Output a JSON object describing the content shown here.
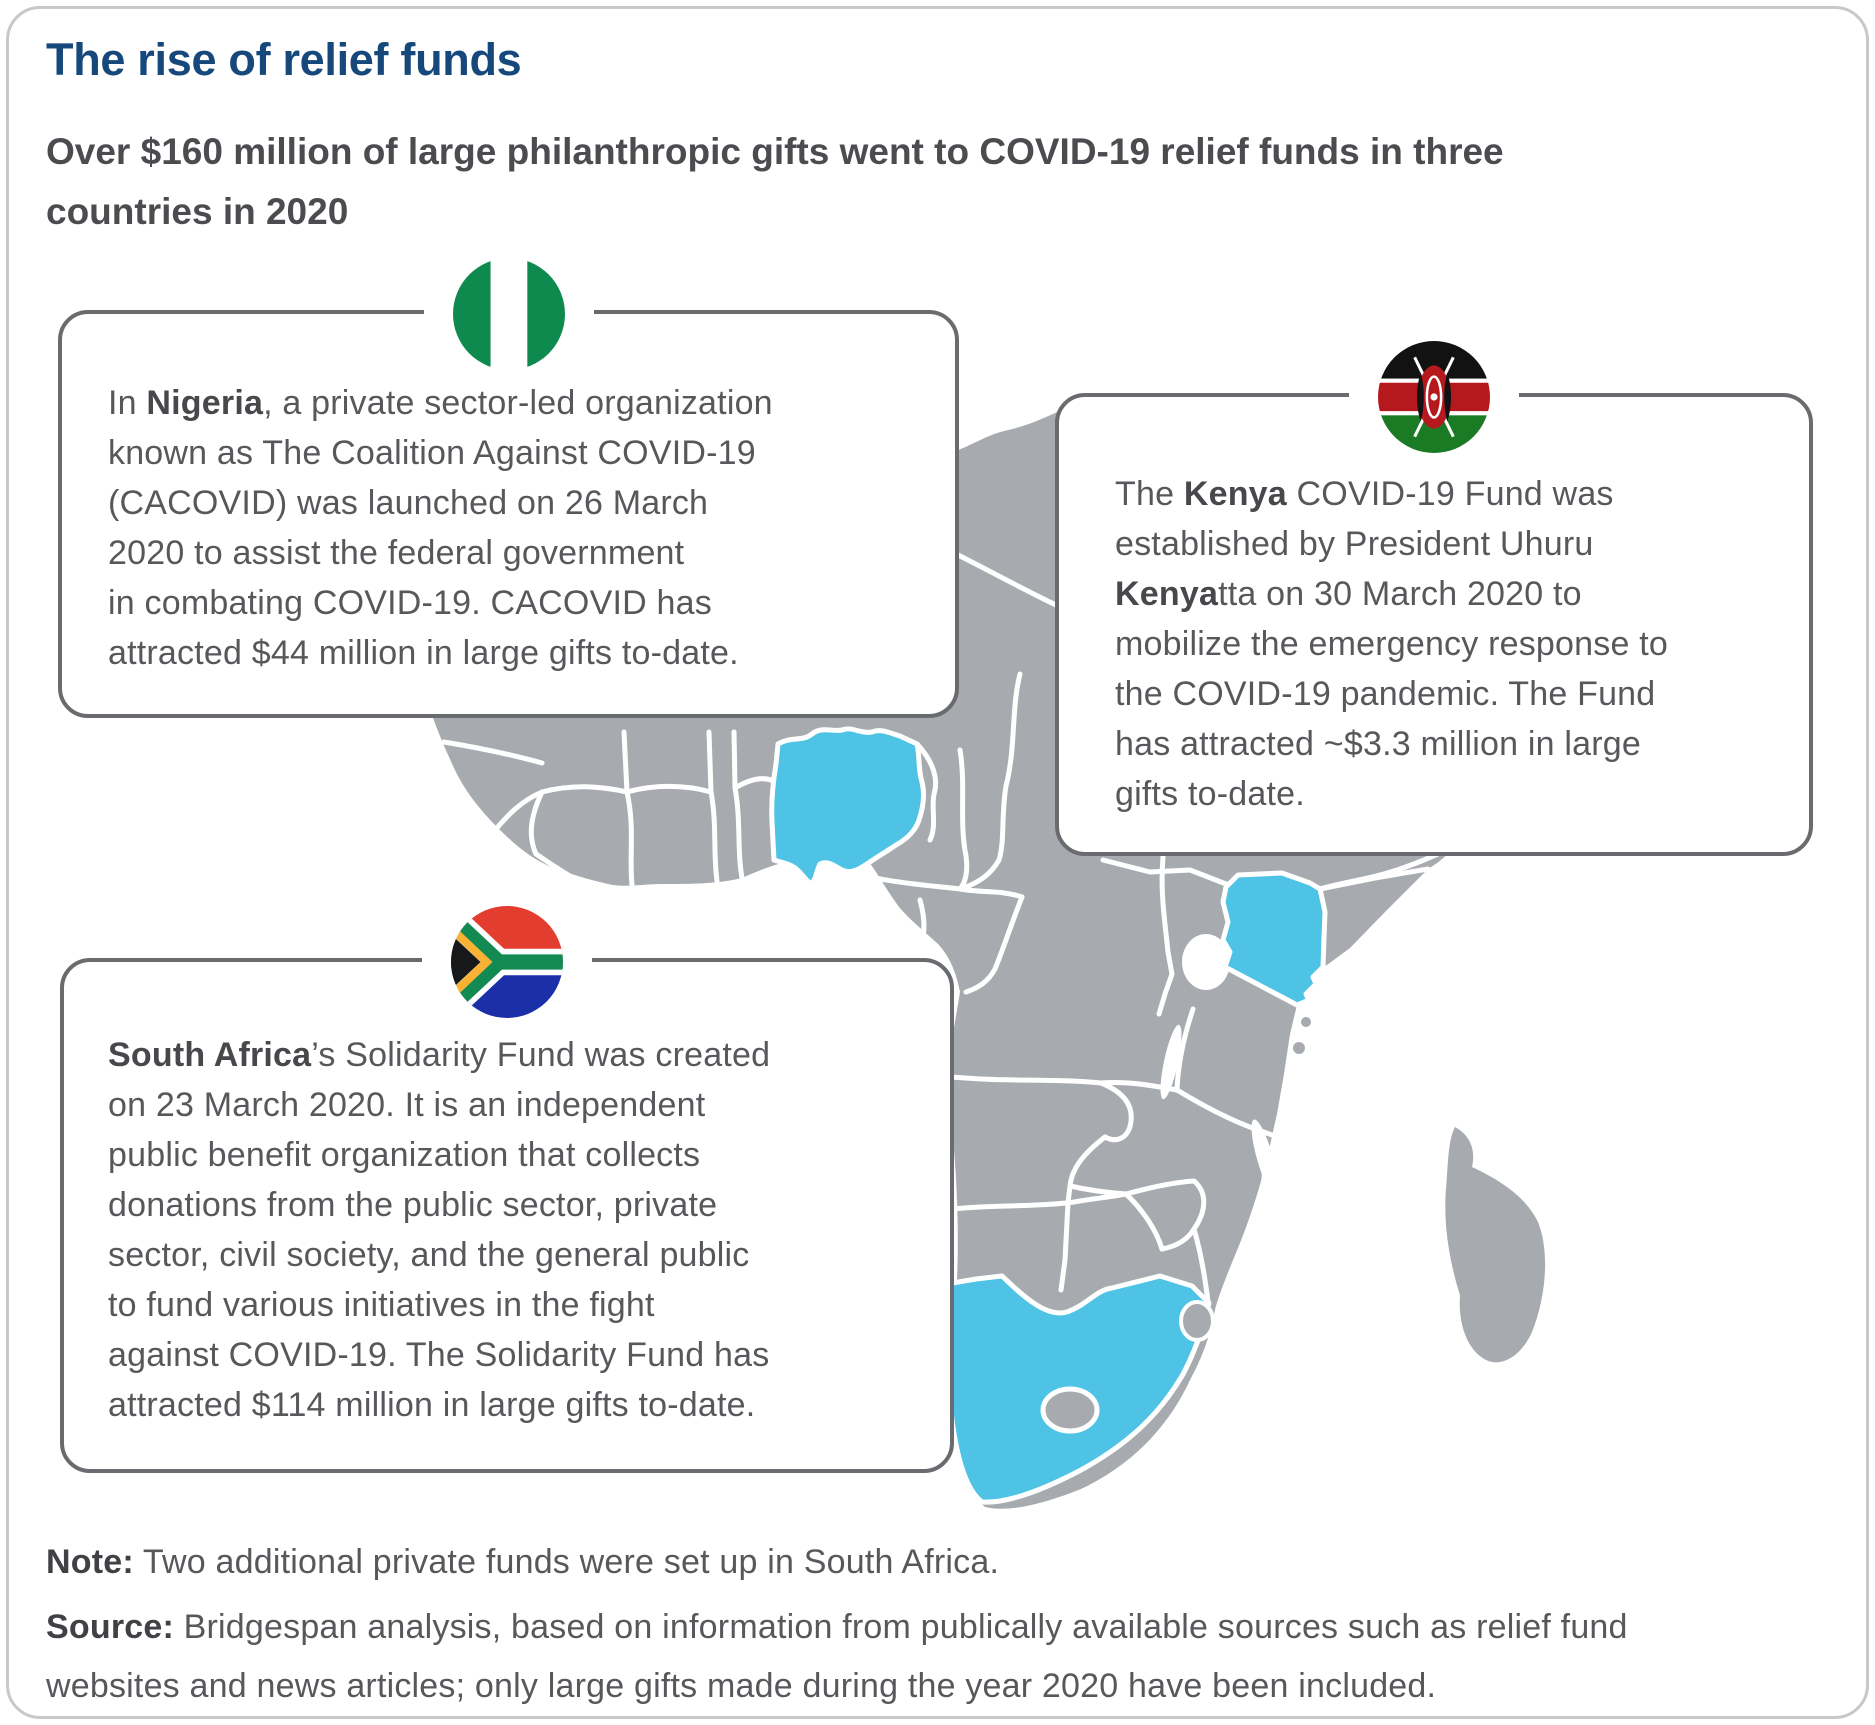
{
  "header": {
    "title": "The rise of relief funds",
    "subtitle_lines": [
      "Over $160 million of large philanthropic gifts went to COVID-19 relief funds in three",
      "countries in 2020"
    ]
  },
  "callouts": {
    "nigeria": {
      "country": "Nigeria",
      "flag_icon": "nigeria-flag-icon",
      "lines": [
        "In Nigeria, a private sector-led organization",
        "known as The Coalition Against COVID-19",
        "(CACOVID) was launched on 26 March",
        "2020 to assist the federal government",
        "in combating COVID-19. CACOVID has",
        "attracted $44 million in large gifts to-date."
      ]
    },
    "kenya": {
      "country": "Kenya",
      "flag_icon": "kenya-flag-icon",
      "lines": [
        "The Kenya COVID-19 Fund was",
        "established by President Uhuru",
        "Kenyatta on 30 March 2020 to",
        "mobilize the emergency response to",
        "the COVID-19 pandemic. The Fund",
        "has attracted ~$3.3 million in large",
        "gifts to-date."
      ]
    },
    "south_africa": {
      "country": "South Africa",
      "flag_icon": "south-africa-flag-icon",
      "lines": [
        "South Africa’s Solidarity Fund was created",
        "on 23 March 2020. It is an independent",
        "public benefit organization that collects",
        "donations from the public sector, private",
        "sector, civil society, and the general public",
        "to fund various initiatives in the fight",
        "against COVID-19. The Solidarity Fund has",
        "attracted $114 million in large gifts to-date."
      ]
    }
  },
  "footnotes": {
    "note_bold": "Note:",
    "note_lines": [
      "Note: Two additional private funds were set up in South Africa."
    ],
    "source_bold": "Source:",
    "source_lines": [
      "Source: Bridgespan analysis, based on information from publically available sources such as relief fund",
      "websites and news articles; only large gifts made during the year 2020 have been included."
    ]
  },
  "map": {
    "region": "Africa",
    "land_color": "#a7abaf",
    "border_color": "#ffffff",
    "highlight_color": "#4ec3e6",
    "highlighted_countries": [
      "Nigeria",
      "Kenya",
      "South Africa"
    ],
    "other_features": [
      "Madagascar",
      "Lesotho",
      "Swaziland",
      "Lake Victoria",
      "Lake Tanganyika",
      "Lake Malawi"
    ]
  },
  "colors": {
    "title_navy": "#16487b",
    "subtitle_gray": "#4b4c4f",
    "body_gray": "#57585b",
    "box_border_gray": "#696b6e",
    "card_border_gray": "#c7c8ca",
    "nigeria_green": "#0e8a4f",
    "kenya_black": "#121212",
    "kenya_red": "#b5191e",
    "kenya_green": "#1b7a24",
    "sa_red": "#e23d2e",
    "sa_blue": "#1b2fa8",
    "sa_green": "#138a51",
    "sa_yellow": "#f9b233"
  }
}
